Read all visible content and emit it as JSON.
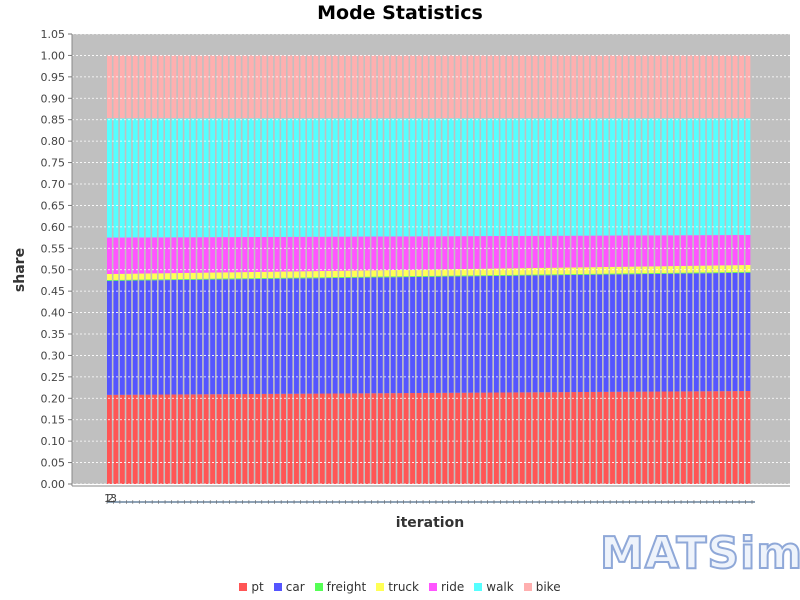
{
  "chart_data": {
    "type": "bar",
    "stacked": true,
    "title": "Mode Statistics",
    "xlabel": "iteration",
    "ylabel": "share",
    "ylim": [
      0,
      1.05
    ],
    "y_ticks": [
      "0.00",
      "0.05",
      "0.10",
      "0.15",
      "0.20",
      "0.25",
      "0.30",
      "0.35",
      "0.40",
      "0.45",
      "0.50",
      "0.55",
      "0.60",
      "0.65",
      "0.70",
      "0.75",
      "0.80",
      "0.85",
      "0.90",
      "0.95",
      "1.00",
      "1.05"
    ],
    "x_tick_labels": [
      "1",
      "2",
      "3"
    ],
    "iterations": 100,
    "grid": true,
    "legend_position": "bottom",
    "series": [
      {
        "name": "pt",
        "color": "#ff5555",
        "start": 0.208,
        "end": 0.217
      },
      {
        "name": "car",
        "color": "#5555ff",
        "start": 0.266,
        "end": 0.276
      },
      {
        "name": "freight",
        "color": "#55ff55",
        "start": 0.002,
        "end": 0.002
      },
      {
        "name": "truck",
        "color": "#ffff55",
        "start": 0.014,
        "end": 0.016
      },
      {
        "name": "ride",
        "color": "#ff55ff",
        "start": 0.085,
        "end": 0.07
      },
      {
        "name": "walk",
        "color": "#55ffff",
        "start": 0.278,
        "end": 0.272
      },
      {
        "name": "bike",
        "color": "#ffafaf",
        "start": 0.147,
        "end": 0.147
      }
    ]
  },
  "logo": "MATSim"
}
